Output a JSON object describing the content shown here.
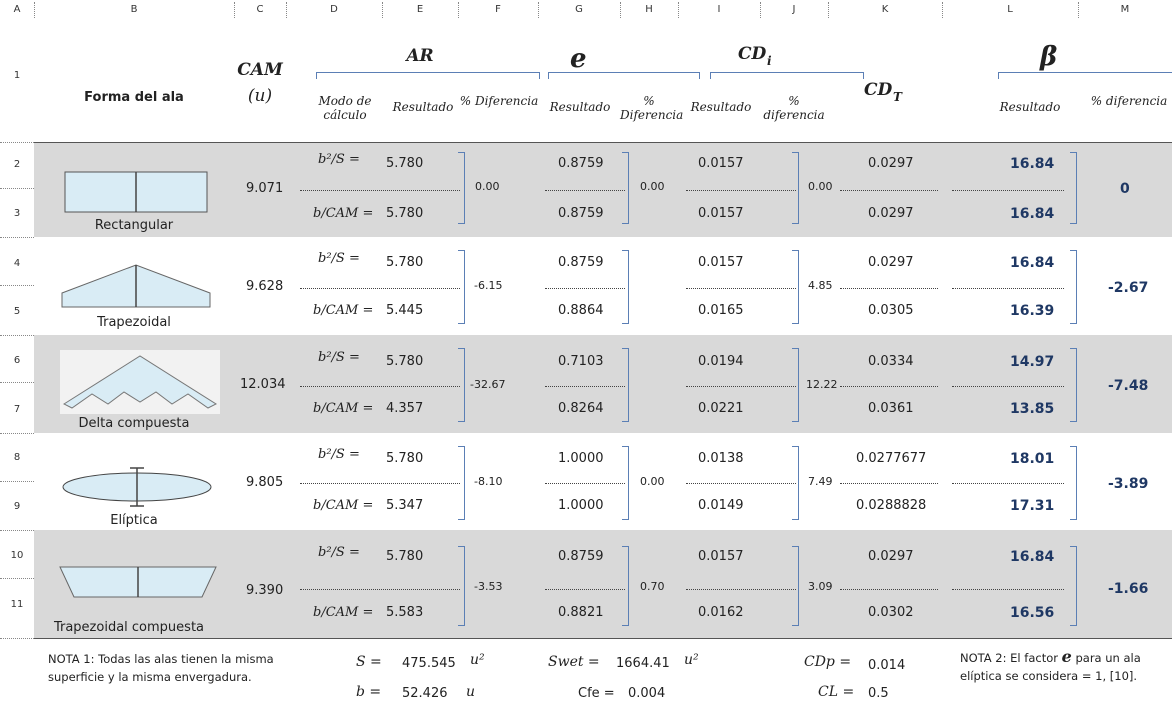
{
  "columns": [
    "A",
    "B",
    "C",
    "D",
    "E",
    "F",
    "G",
    "H",
    "I",
    "J",
    "K",
    "L",
    "M"
  ],
  "rows": [
    "1",
    "2",
    "3",
    "4",
    "5",
    "6",
    "7",
    "8",
    "9",
    "10",
    "11"
  ],
  "header": {
    "forma": "Forma del ala",
    "cam": "CAM",
    "cam_unit": "(u)",
    "ar": "AR",
    "ar_mode": "Modo de cálculo",
    "ar_result": "Resultado",
    "ar_diff": "% Diferencia",
    "e": "e",
    "e_result": "Resultado",
    "e_diff": "% Diferencia",
    "cdi": "CD",
    "cdi_sub": "i",
    "cdi_result": "Resultado",
    "cdi_diff": "% diferencia",
    "cdt": "CD",
    "cdt_sub": "T",
    "beta": "β",
    "beta_result": "Resultado",
    "beta_diff": "% diferencia"
  },
  "wings": [
    {
      "name": "Rectangular",
      "cam": "9.071",
      "ar1": "5.780",
      "ar2": "5.780",
      "ar_diff": "0.00",
      "e1": "0.8759",
      "e2": "0.8759",
      "e_diff": "0.00",
      "cdi1": "0.0157",
      "cdi2": "0.0157",
      "cdi_diff": "0.00",
      "cdt1": "0.0297",
      "cdt2": "0.0297",
      "beta1": "16.84",
      "beta2": "16.84",
      "beta_diff": "0",
      "shaded": true
    },
    {
      "name": "Trapezoidal",
      "cam": "9.628",
      "ar1": "5.780",
      "ar2": "5.445",
      "ar_diff": "-6.15",
      "e1": "0.8759",
      "e2": "0.8864",
      "e_diff": "",
      "cdi1": "0.0157",
      "cdi2": "0.0165",
      "cdi_diff": "4.85",
      "cdt1": "0.0297",
      "cdt2": "0.0305",
      "beta1": "16.84",
      "beta2": "16.39",
      "beta_diff": "-2.67",
      "shaded": false
    },
    {
      "name": "Delta compuesta",
      "cam": "12.034",
      "ar1": "5.780",
      "ar2": "4.357",
      "ar_diff": "-32.67",
      "e1": "0.7103",
      "e2": "0.8264",
      "e_diff": "",
      "cdi1": "0.0194",
      "cdi2": "0.0221",
      "cdi_diff": "12.22",
      "cdt1": "0.0334",
      "cdt2": "0.0361",
      "beta1": "14.97",
      "beta2": "13.85",
      "beta_diff": "-7.48",
      "shaded": true
    },
    {
      "name": "Elíptica",
      "cam": "9.805",
      "ar1": "5.780",
      "ar2": "5.347",
      "ar_diff": "-8.10",
      "e1": "1.0000",
      "e2": "1.0000",
      "e_diff": "0.00",
      "cdi1": "0.0138",
      "cdi2": "0.0149",
      "cdi_diff": "7.49",
      "cdt1": "0.0277677",
      "cdt2": "0.0288828",
      "beta1": "18.01",
      "beta2": "17.31",
      "beta_diff": "-3.89",
      "shaded": false
    },
    {
      "name": "Trapezoidal compuesta",
      "cam": "9.390",
      "ar1": "5.780",
      "ar2": "5.583",
      "ar_diff": "-3.53",
      "e1": "0.8759",
      "e2": "0.8821",
      "e_diff": "0.70",
      "cdi1": "0.0157",
      "cdi2": "0.0162",
      "cdi_diff": "3.09",
      "cdt1": "0.0297",
      "cdt2": "0.0302",
      "beta1": "16.84",
      "beta2": "16.56",
      "beta_diff": "-1.66",
      "shaded": true
    }
  ],
  "labels": {
    "ar_formula1": "b²/S =",
    "ar_formula2": "b/CAM ="
  },
  "footer": {
    "note1": "NOTA 1: Todas las alas tienen la misma superficie y la misma envergadura.",
    "S_label": "S =",
    "S_value": "475.545",
    "S_unit": "u²",
    "b_label": "b =",
    "b_value": "52.426",
    "b_unit": "u",
    "swet_label": "Swet =",
    "swet_value": "1664.41",
    "swet_unit": "u²",
    "cfe_label": "Cfe =",
    "cfe_value": "0.004",
    "cdp_label": "CDp =",
    "cdp_value": "0.014",
    "cl_label": "CL =",
    "cl_value": "0.5",
    "note2_a": "NOTA 2: El factor",
    "note2_e": "e",
    "note2_b": "para un ala elíptica se considera = 1, [10]."
  }
}
